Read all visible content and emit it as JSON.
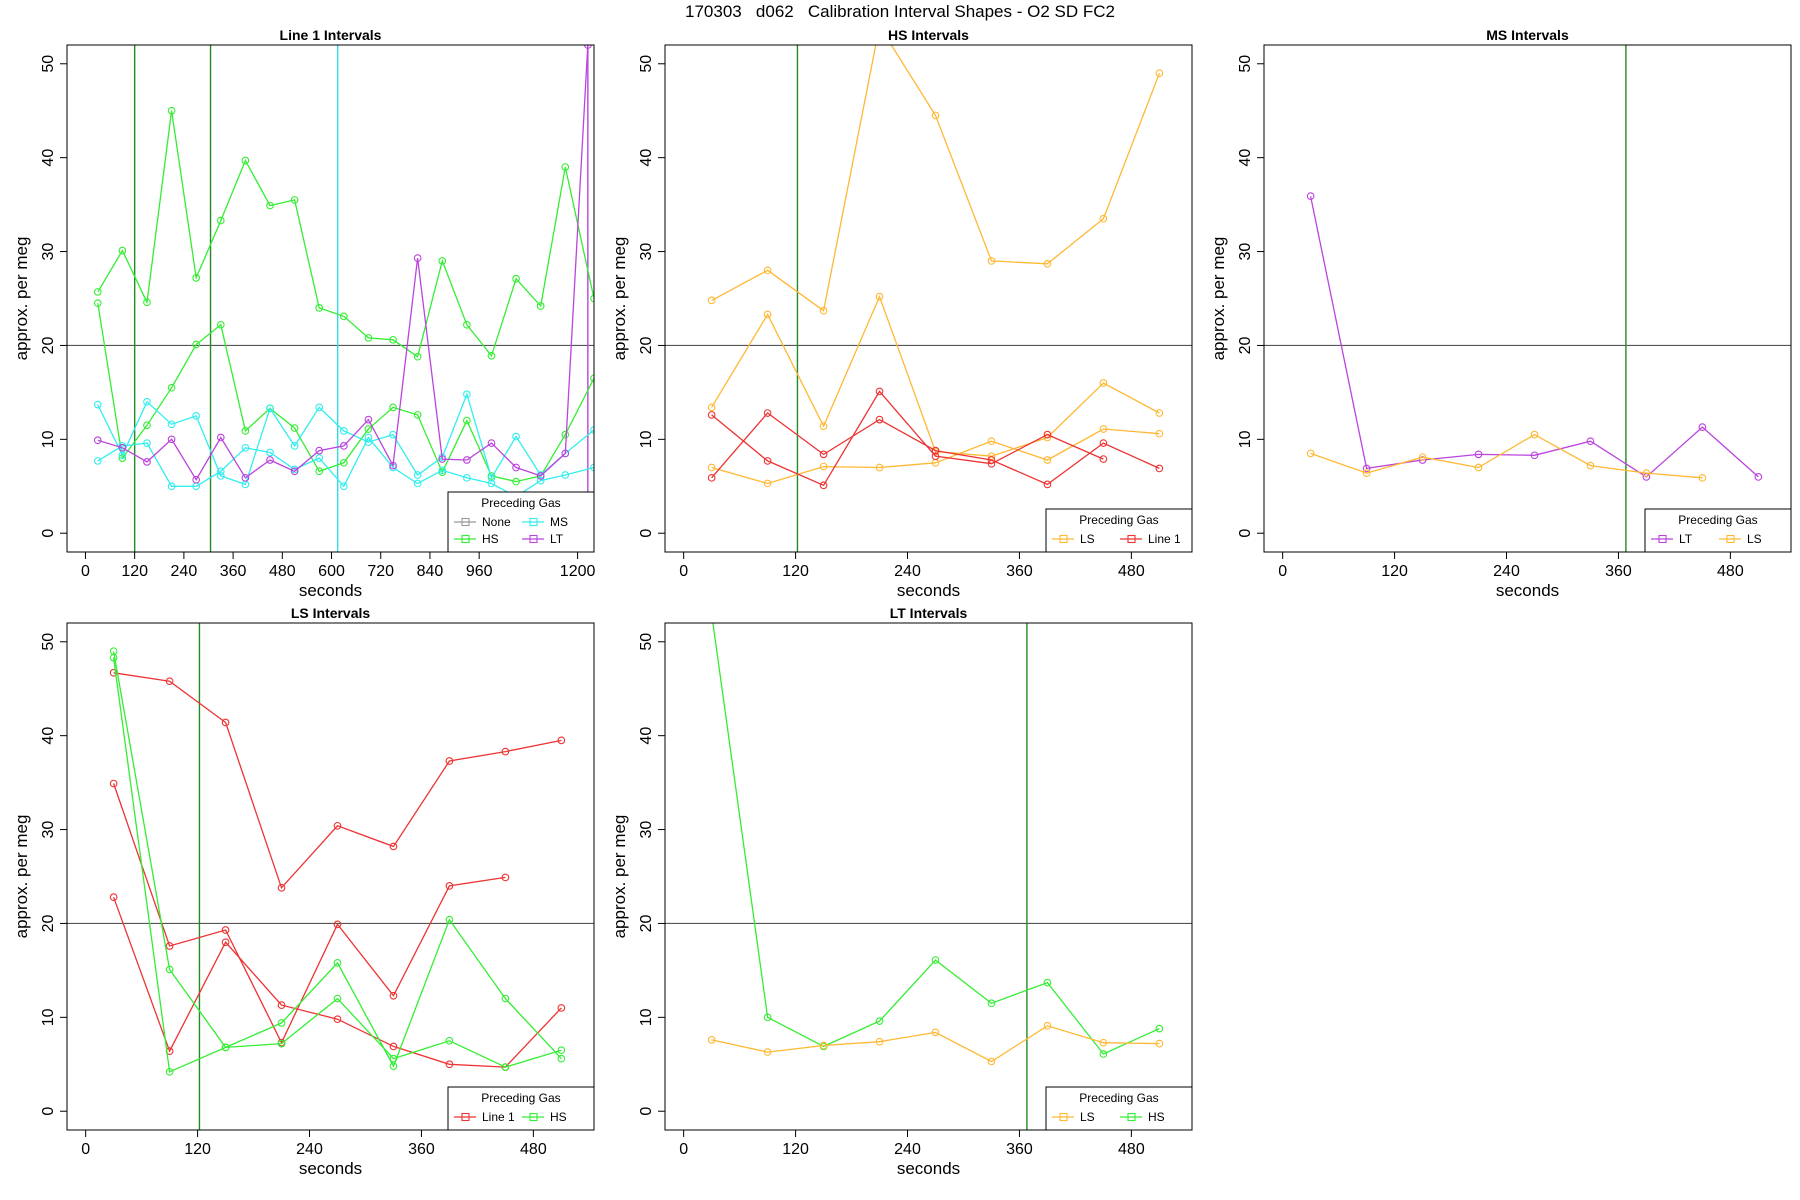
{
  "page_title": "170303   d062   Calibration Interval Shapes - O2 SD FC2",
  "colors": {
    "None": "#999999",
    "HS": "#33ee33",
    "MS": "#33eeee",
    "LT": "#bb44dd",
    "LS": "#ffb833",
    "Line 1": "#ee3333",
    "refline": "#555555",
    "vline_green": "#228b22",
    "vline_cyan": "#33dddd",
    "vline_purple": "#bb44dd"
  },
  "chart_data": [
    {
      "type": "line",
      "title": "Line 1 Intervals",
      "xlabel": "seconds",
      "ylabel": "approx. per meg",
      "xlim": [
        -45,
        1240
      ],
      "ylim": [
        -2,
        52
      ],
      "xticks": [
        0,
        120,
        240,
        360,
        480,
        600,
        720,
        840,
        960,
        1200
      ],
      "yticks": [
        0,
        10,
        20,
        30,
        40,
        50
      ],
      "hline": 20,
      "vlines": [
        {
          "x": 120,
          "color": "vline_green"
        },
        {
          "x": 305,
          "color": "vline_green"
        },
        {
          "x": 615,
          "color": "vline_cyan"
        },
        {
          "x": 1225,
          "color": "vline_purple"
        }
      ],
      "legend": {
        "title": "Preceding Gas",
        "position": "bottom-right",
        "columns": 2,
        "entries": [
          "None",
          "MS",
          "HS",
          "LT"
        ]
      },
      "series": [
        {
          "name": "HS",
          "x": [
            30,
            90,
            150,
            210,
            270,
            330,
            390,
            450,
            510,
            570,
            630,
            690,
            750,
            810,
            870,
            930,
            990,
            1050,
            1110,
            1170,
            1240
          ],
          "y": [
            25.7,
            30.1,
            24.6,
            45,
            27.2,
            33.3,
            39.7,
            34.9,
            35.5,
            24,
            23.1,
            20.8,
            20.6,
            18.8,
            29,
            22.2,
            18.9,
            27.1,
            24.2,
            39,
            25
          ]
        },
        {
          "name": "HS",
          "x": [
            30,
            90,
            150,
            210,
            270,
            330,
            390,
            450,
            510,
            570,
            630,
            690,
            750,
            810,
            870,
            930,
            990,
            1050,
            1110,
            1170,
            1240
          ],
          "y": [
            24.5,
            8,
            11.5,
            15.5,
            20.1,
            22.2,
            10.9,
            13.3,
            11.2,
            6.6,
            7.5,
            11.1,
            13.4,
            12.6,
            6.5,
            12,
            6.1,
            5.5,
            6.1,
            10.5,
            16.5
          ]
        },
        {
          "name": "MS",
          "x": [
            30,
            90,
            150,
            210,
            270,
            330,
            390,
            450,
            510,
            570,
            630,
            690,
            750,
            810,
            870,
            930,
            990,
            1050,
            1110,
            1170,
            1240
          ],
          "y": [
            13.7,
            8.3,
            14,
            11.6,
            12.5,
            6.1,
            5.2,
            13.3,
            9.3,
            13.4,
            10.9,
            9.7,
            10.5,
            6.2,
            8.1,
            14.8,
            5.9,
            10.3,
            6.2,
            8.5,
            11
          ]
        },
        {
          "name": "MS",
          "x": [
            30,
            90,
            150,
            210,
            270,
            330,
            390,
            450,
            510,
            570,
            630,
            690,
            750,
            810,
            870,
            930,
            990,
            1050,
            1110,
            1170,
            1240
          ],
          "y": [
            7.7,
            9.3,
            9.6,
            5,
            5,
            6.6,
            9.1,
            8.6,
            6.8,
            8,
            5,
            10.2,
            7,
            5.3,
            6.7,
            5.9,
            5.3,
            3.9,
            5.6,
            6.2,
            7
          ]
        },
        {
          "name": "LT",
          "x": [
            30,
            90,
            150,
            210,
            270,
            330,
            390,
            450,
            510,
            570,
            630,
            690,
            750,
            810,
            870,
            930,
            990,
            1050,
            1110,
            1170,
            1225
          ],
          "y": [
            9.9,
            9.1,
            7.6,
            10,
            5.7,
            10.2,
            5.9,
            7.8,
            6.6,
            8.8,
            9.3,
            12.1,
            7.2,
            29.3,
            7.9,
            7.8,
            9.6,
            7,
            6.1,
            8.5,
            52
          ]
        }
      ]
    },
    {
      "type": "line",
      "title": "HS Intervals",
      "xlabel": "seconds",
      "ylabel": "approx. per meg",
      "xlim": [
        -20,
        545
      ],
      "ylim": [
        -2,
        52
      ],
      "xticks": [
        0,
        120,
        240,
        360,
        480
      ],
      "yticks": [
        0,
        10,
        20,
        30,
        40,
        50
      ],
      "hline": 20,
      "vlines": [
        {
          "x": 122,
          "color": "vline_green"
        }
      ],
      "legend": {
        "title": "Preceding Gas",
        "position": "bottom-right",
        "columns": 2,
        "entries": [
          "LS",
          "Line 1"
        ]
      },
      "series": [
        {
          "name": "LS",
          "x": [
            30,
            90,
            150,
            210,
            270,
            330,
            390,
            450,
            510
          ],
          "y": [
            24.8,
            28,
            23.7,
            54,
            44.5,
            29,
            28.7,
            33.5,
            49
          ]
        },
        {
          "name": "LS",
          "x": [
            30,
            90,
            150,
            210,
            270,
            330,
            390,
            450,
            510
          ],
          "y": [
            13.4,
            23.3,
            11.4,
            25.2,
            8.7,
            8.2,
            10.2,
            16,
            12.8
          ]
        },
        {
          "name": "LS",
          "x": [
            30,
            90,
            150,
            210,
            270,
            330,
            390,
            450,
            510
          ],
          "y": [
            7,
            5.3,
            7.1,
            7,
            7.5,
            9.8,
            7.8,
            11.1,
            10.6
          ]
        },
        {
          "name": "Line 1",
          "x": [
            30,
            90,
            150,
            210,
            270,
            330,
            390,
            450
          ],
          "y": [
            12.6,
            7.7,
            5.1,
            15.1,
            8.2,
            7.4,
            10.5,
            7.9
          ]
        },
        {
          "name": "Line 1",
          "x": [
            30,
            90,
            150,
            210,
            270,
            330,
            390,
            450,
            510
          ],
          "y": [
            5.9,
            12.8,
            8.4,
            12.1,
            8.8,
            7.8,
            5.2,
            9.6,
            6.9
          ]
        }
      ]
    },
    {
      "type": "line",
      "title": "MS Intervals",
      "xlabel": "seconds",
      "ylabel": "approx. per meg",
      "xlim": [
        -20,
        545
      ],
      "ylim": [
        -2,
        52
      ],
      "xticks": [
        0,
        120,
        240,
        360,
        480
      ],
      "yticks": [
        0,
        10,
        20,
        30,
        40,
        50
      ],
      "hline": 20,
      "vlines": [
        {
          "x": 368,
          "color": "vline_green"
        }
      ],
      "legend": {
        "title": "Preceding Gas",
        "position": "bottom-right",
        "columns": 2,
        "entries": [
          "LT",
          "LS"
        ]
      },
      "series": [
        {
          "name": "LT",
          "x": [
            30,
            90,
            150,
            210,
            270,
            330,
            390,
            450,
            510
          ],
          "y": [
            35.9,
            6.9,
            7.8,
            8.4,
            8.3,
            9.8,
            6,
            11.3,
            6
          ]
        },
        {
          "name": "LS",
          "x": [
            30,
            90,
            150,
            210,
            270,
            330,
            390,
            450
          ],
          "y": [
            8.5,
            6.4,
            8.1,
            7,
            10.5,
            7.2,
            6.4,
            5.9
          ]
        }
      ]
    },
    {
      "type": "line",
      "title": "LS Intervals",
      "xlabel": "seconds",
      "ylabel": "approx. per meg",
      "xlim": [
        -20,
        545
      ],
      "ylim": [
        -2,
        52
      ],
      "xticks": [
        0,
        120,
        240,
        360,
        480
      ],
      "yticks": [
        0,
        10,
        20,
        30,
        40,
        50
      ],
      "hline": 20,
      "vlines": [
        {
          "x": 122,
          "color": "vline_green"
        }
      ],
      "legend": {
        "title": "Preceding Gas",
        "position": "bottom-right",
        "columns": 2,
        "entries": [
          "Line 1",
          "HS"
        ]
      },
      "series": [
        {
          "name": "Line 1",
          "x": [
            30,
            90,
            150,
            210,
            270,
            330,
            390,
            450,
            510
          ],
          "y": [
            46.7,
            45.8,
            41.4,
            23.8,
            30.4,
            28.2,
            37.3,
            38.3,
            39.5
          ]
        },
        {
          "name": "Line 1",
          "x": [
            30,
            90,
            150,
            210,
            270,
            330,
            390,
            450
          ],
          "y": [
            34.9,
            17.6,
            19.3,
            7.3,
            19.9,
            12.3,
            24,
            24.9
          ]
        },
        {
          "name": "Line 1",
          "x": [
            30,
            90,
            150,
            210,
            270,
            330,
            390,
            450,
            510
          ],
          "y": [
            22.8,
            6.4,
            18,
            11.3,
            9.8,
            6.9,
            5,
            4.7,
            11
          ]
        },
        {
          "name": "HS",
          "x": [
            30,
            90,
            150,
            210,
            270,
            330,
            390,
            450,
            510
          ],
          "y": [
            49,
            15.1,
            6.8,
            9.4,
            15.8,
            4.8,
            20.4,
            12,
            5.6
          ]
        },
        {
          "name": "HS",
          "x": [
            30,
            90,
            150,
            210,
            270,
            330,
            390,
            450,
            510
          ],
          "y": [
            48.3,
            4.2,
            6.8,
            7.2,
            12,
            5.6,
            7.5,
            4.7,
            6.5
          ]
        }
      ]
    },
    {
      "type": "line",
      "title": "LT Intervals",
      "xlabel": "seconds",
      "ylabel": "approx. per meg",
      "xlim": [
        -20,
        545
      ],
      "ylim": [
        -2,
        52
      ],
      "xticks": [
        0,
        120,
        240,
        360,
        480
      ],
      "yticks": [
        0,
        10,
        20,
        30,
        40,
        50
      ],
      "hline": 20,
      "vlines": [
        {
          "x": 368,
          "color": "vline_green"
        }
      ],
      "legend": {
        "title": "Preceding Gas",
        "position": "bottom-right",
        "columns": 2,
        "entries": [
          "LS",
          "HS"
        ]
      },
      "series": [
        {
          "name": "HS",
          "x": [
            30,
            90,
            150,
            210,
            270,
            330,
            390,
            450,
            510
          ],
          "y": [
            53,
            10,
            6.9,
            9.6,
            16.1,
            11.5,
            13.7,
            6.1,
            8.8
          ]
        },
        {
          "name": "LS",
          "x": [
            30,
            90,
            150,
            210,
            270,
            330,
            390,
            450,
            510
          ],
          "y": [
            7.6,
            6.3,
            7,
            7.4,
            8.4,
            5.3,
            9.1,
            7.3,
            7.2
          ]
        }
      ]
    }
  ]
}
